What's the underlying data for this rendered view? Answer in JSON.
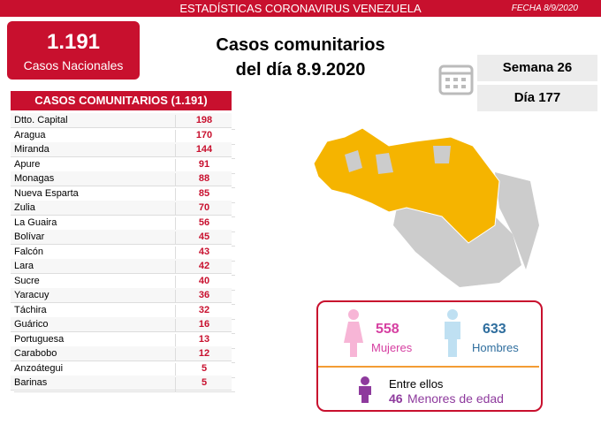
{
  "header": {
    "title": "ESTADÍSTICAS CORONAVIRUS VENEZUELA",
    "date": "FECHA 8/9/2020"
  },
  "total": {
    "value": "1.191",
    "label": "Casos Nacionales"
  },
  "headline": [
    "Casos comunitarios",
    "del día 8.9.2020"
  ],
  "week": "Semana 26",
  "day": "Día 177",
  "table": {
    "title": "CASOS COMUNITARIOS (1.191)",
    "rows": [
      [
        "Dtto. Capital",
        198
      ],
      [
        "Aragua",
        170
      ],
      [
        "Miranda",
        144
      ],
      [
        "Apure",
        91
      ],
      [
        "Monagas",
        88
      ],
      [
        "Nueva Esparta",
        85
      ],
      [
        "Zulia",
        70
      ],
      [
        "La Guaira",
        56
      ],
      [
        "Bolívar",
        45
      ],
      [
        "Falcón",
        43
      ],
      [
        "Lara",
        42
      ],
      [
        "Sucre",
        40
      ],
      [
        "Yaracuy",
        36
      ],
      [
        "Táchira",
        32
      ],
      [
        "Guárico",
        16
      ],
      [
        "Portuguesa",
        13
      ],
      [
        "Carabobo",
        12
      ],
      [
        "Anzoátegui",
        5
      ],
      [
        "Barinas",
        5
      ]
    ]
  },
  "gender": {
    "women": {
      "value": 558,
      "label": "Mujeres"
    },
    "men": {
      "value": 633,
      "label": "Hombres"
    },
    "minors": {
      "intro": "Entre ellos",
      "value": 46,
      "label": "Menores de edad"
    }
  }
}
